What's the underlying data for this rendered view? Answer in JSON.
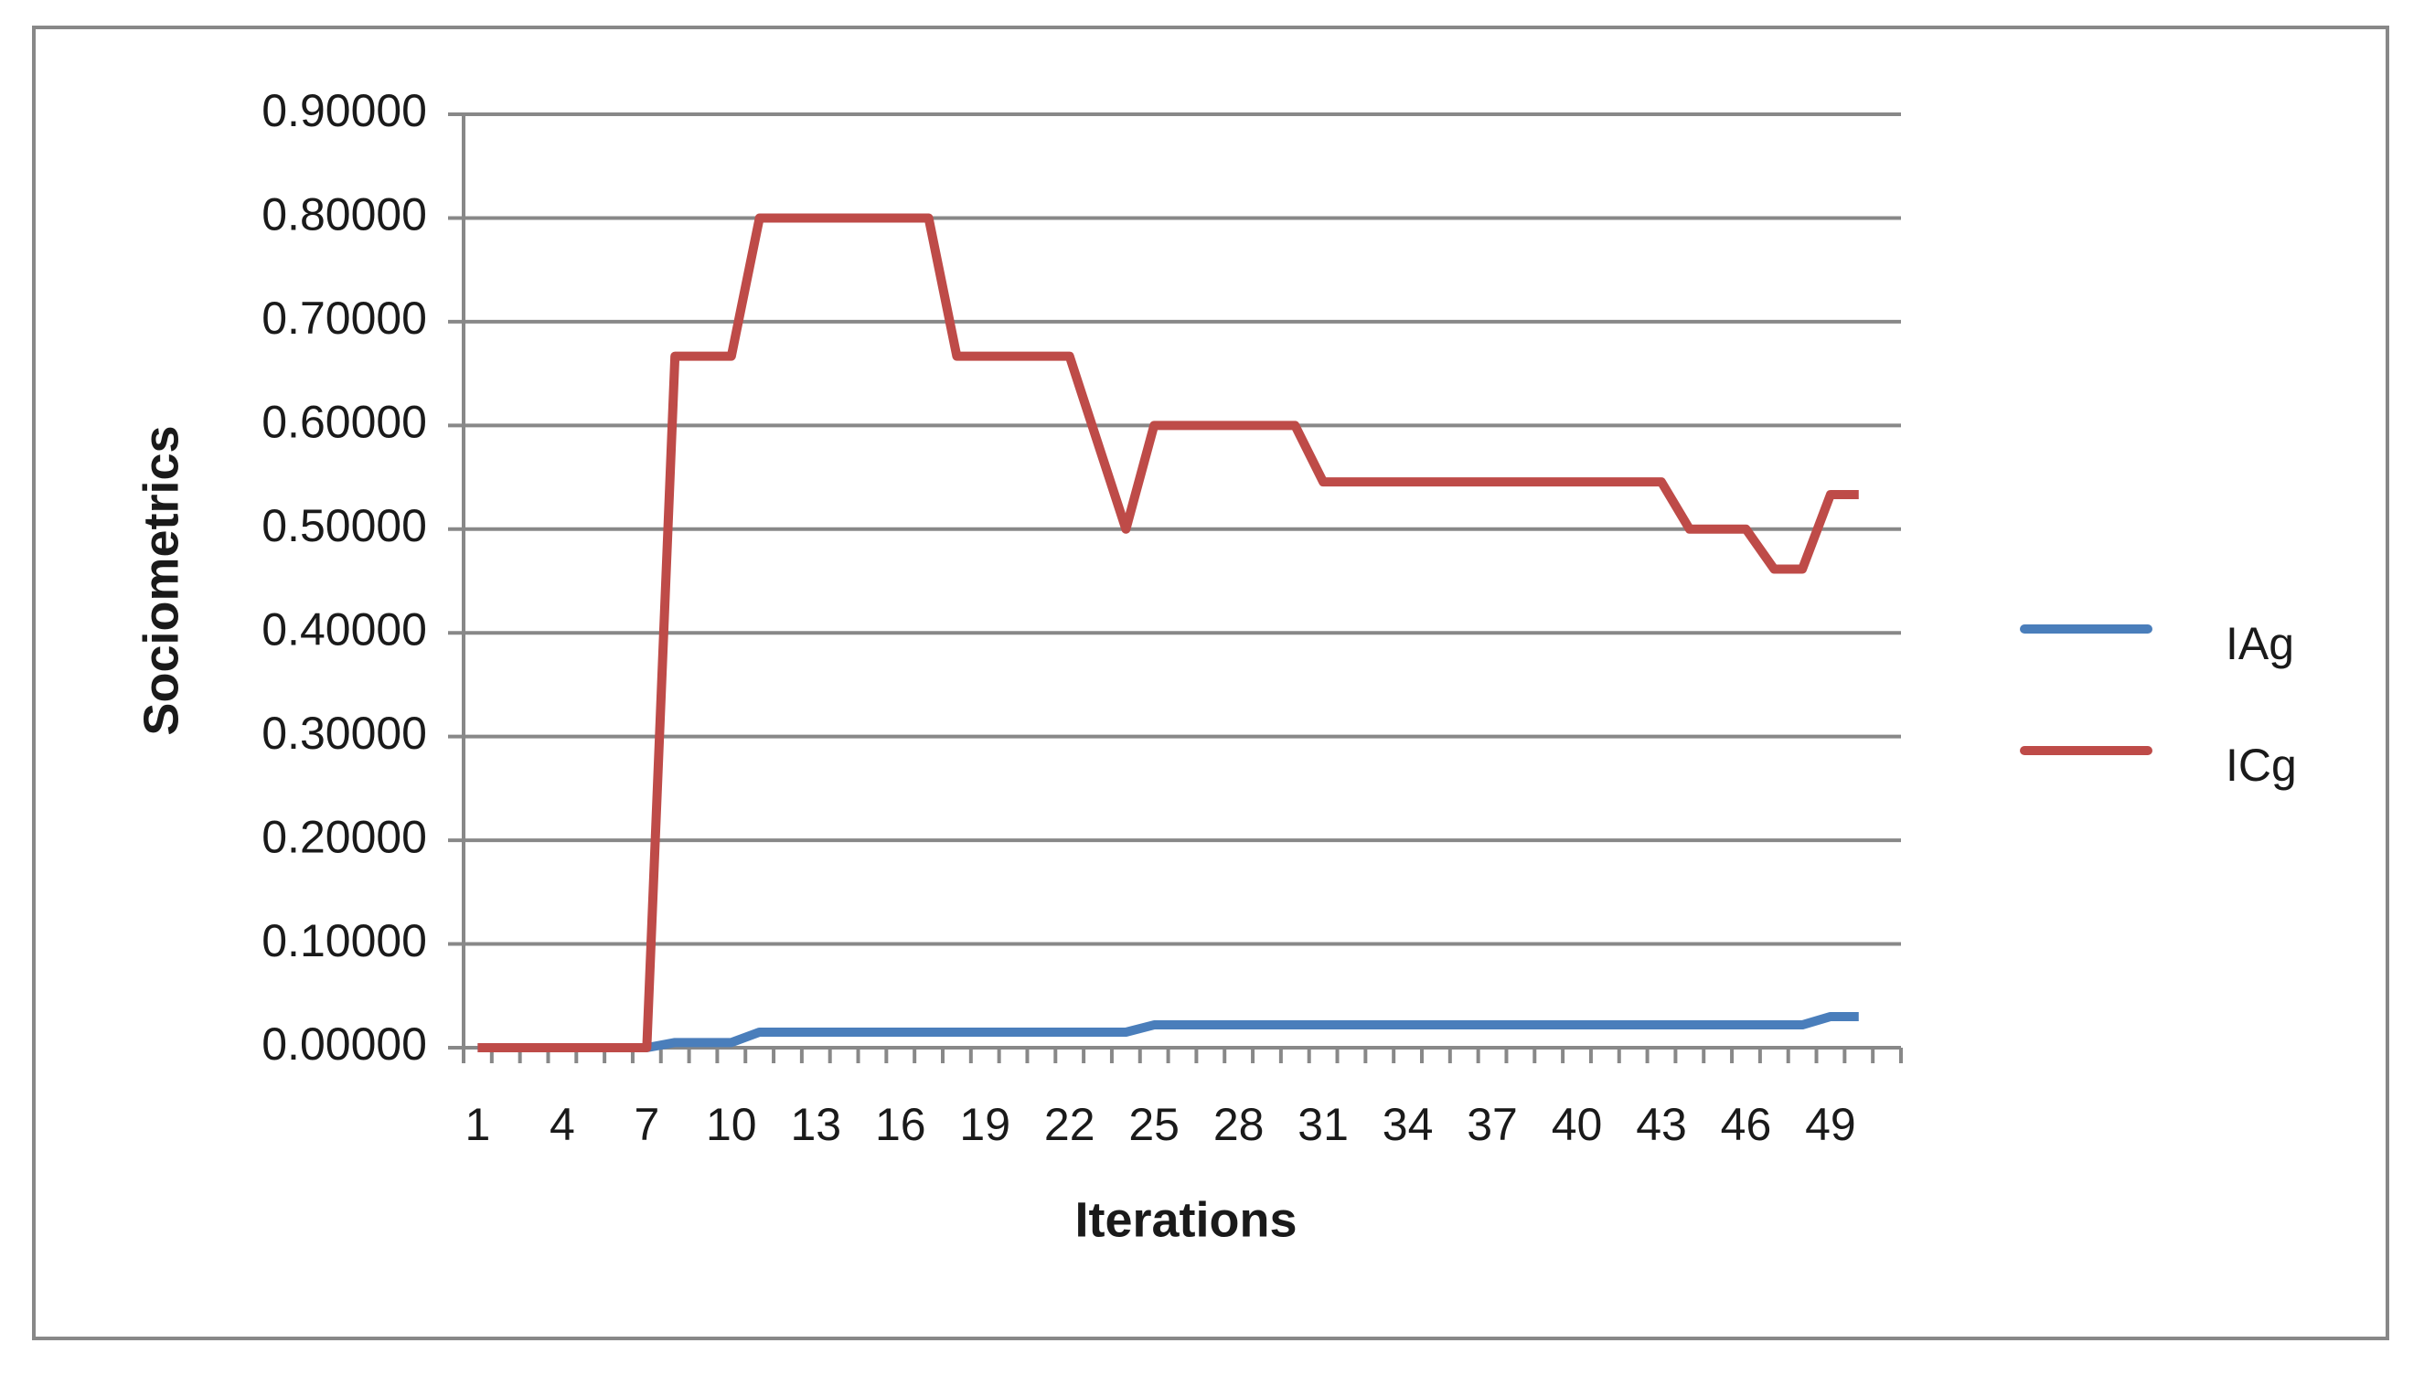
{
  "chart_data": {
    "type": "line",
    "x_label": "Iterations",
    "y_label": "Sociometrics",
    "categories": [
      1,
      null,
      null,
      4,
      null,
      null,
      7,
      null,
      null,
      10,
      null,
      null,
      13,
      null,
      null,
      16,
      null,
      null,
      19,
      null,
      null,
      22,
      null,
      null,
      25,
      null,
      null,
      28,
      null,
      null,
      31,
      null,
      null,
      34,
      null,
      null,
      37,
      null,
      null,
      40,
      null,
      null,
      43,
      null,
      null,
      46,
      null,
      null,
      49,
      null,
      null
    ],
    "series": [
      {
        "name": "IAg",
        "color": "#4a7ebb",
        "values": [
          0,
          0,
          0,
          0,
          0,
          0,
          0,
          0.005,
          0.005,
          0.005,
          0.015,
          0.015,
          0.015,
          0.015,
          0.015,
          0.015,
          0.015,
          0.015,
          0.015,
          0.015,
          0.015,
          0.015,
          0.015,
          0.015,
          0.022,
          0.022,
          0.022,
          0.022,
          0.022,
          0.022,
          0.022,
          0.022,
          0.022,
          0.022,
          0.022,
          0.022,
          0.022,
          0.022,
          0.022,
          0.022,
          0.022,
          0.022,
          0.022,
          0.022,
          0.022,
          0.022,
          0.022,
          0.022,
          0.03,
          0.03,
          null
        ]
      },
      {
        "name": "ICg",
        "color": "#be4b48",
        "values": [
          0,
          0,
          0,
          0,
          0,
          0,
          0,
          0.6667,
          0.6667,
          0.6667,
          0.8,
          0.8,
          0.8,
          0.8,
          0.8,
          0.8,
          0.8,
          0.6667,
          0.6667,
          0.6667,
          0.6667,
          0.6667,
          0.5833,
          0.5,
          0.6,
          0.6,
          0.6,
          0.6,
          0.6,
          0.6,
          0.5455,
          0.5455,
          0.5455,
          0.5455,
          0.5455,
          0.5455,
          0.5455,
          0.5455,
          0.5455,
          0.5455,
          0.5455,
          0.5455,
          0.5455,
          0.5,
          0.5,
          0.5,
          0.4615,
          0.4615,
          0.5333,
          0.5333,
          null
        ]
      }
    ],
    "ylim": [
      0,
      0.9
    ],
    "yticks": [
      {
        "value": 0,
        "label": "0.00000"
      },
      {
        "value": 0.1,
        "label": "0.10000"
      },
      {
        "value": 0.2,
        "label": "0.20000"
      },
      {
        "value": 0.3,
        "label": "0.30000"
      },
      {
        "value": 0.4,
        "label": "0.40000"
      },
      {
        "value": 0.5,
        "label": "0.50000"
      },
      {
        "value": 0.6,
        "label": "0.60000"
      },
      {
        "value": 0.7,
        "label": "0.70000"
      },
      {
        "value": 0.8,
        "label": "0.80000"
      },
      {
        "value": 0.9,
        "label": "0.90000"
      }
    ],
    "grid": true,
    "legend": "right"
  }
}
